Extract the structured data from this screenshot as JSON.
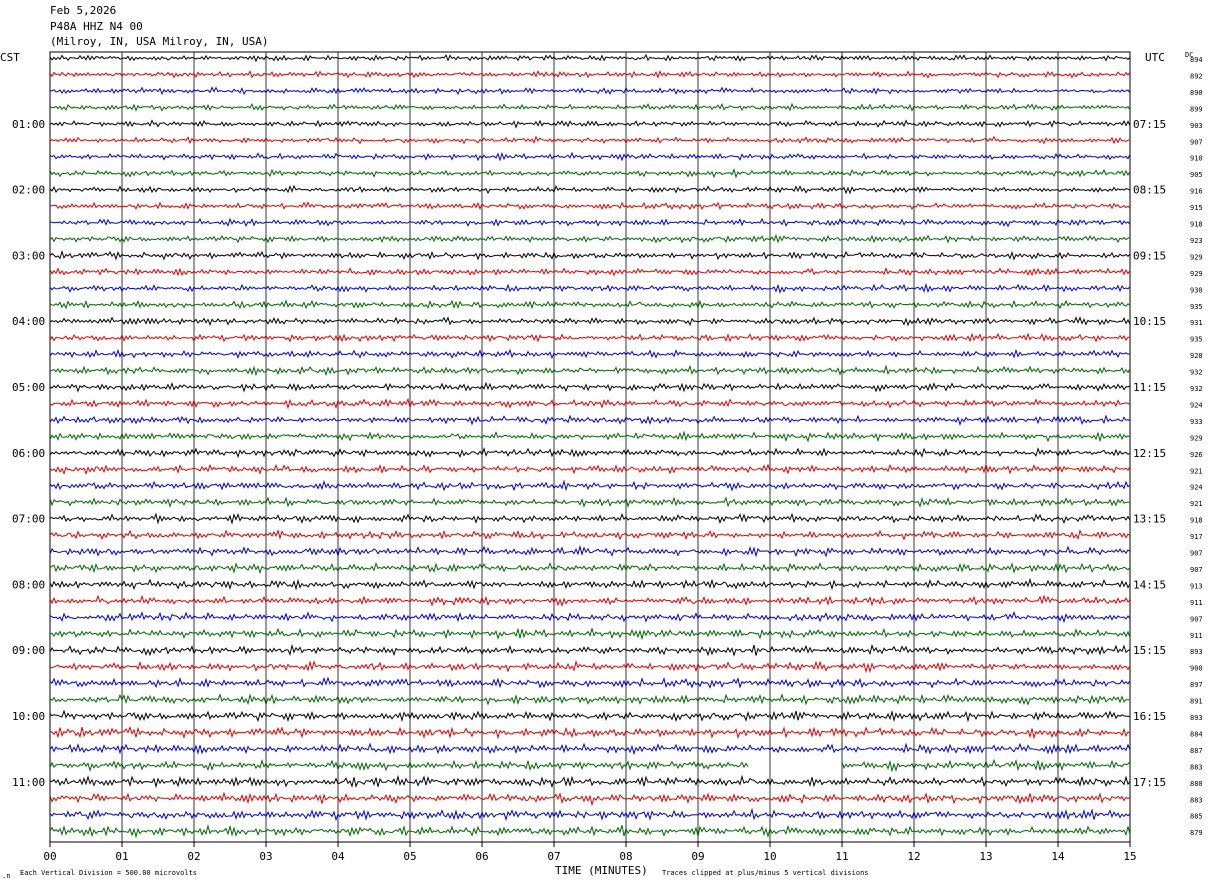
{
  "header": {
    "date": "Feb 5,2026",
    "station": "P48A HHZ N4 00",
    "location": "(Milroy, IN, USA Milroy, IN, USA)"
  },
  "chart_data": {
    "type": "line",
    "title": "P48A HHZ N4 00",
    "left_timezone": "CST",
    "right_timezone": "UTC",
    "dc_label": "DC",
    "xlabel": "TIME (MINUTES)",
    "xlim": [
      0,
      15
    ],
    "x_ticks": [
      "00",
      "01",
      "02",
      "03",
      "04",
      "05",
      "06",
      "07",
      "08",
      "09",
      "10",
      "11",
      "12",
      "13",
      "14",
      "15"
    ],
    "left_hour_labels": [
      "01:00",
      "02:00",
      "03:00",
      "04:00",
      "05:00",
      "06:00",
      "07:00",
      "08:00",
      "09:00",
      "10:00",
      "11:00"
    ],
    "right_hour_labels": [
      "07:15",
      "08:15",
      "09:15",
      "10:15",
      "11:15",
      "12:15",
      "13:15",
      "14:15",
      "15:15",
      "16:15",
      "17:15"
    ],
    "dc_offsets": [
      "894",
      "892",
      "890",
      "899",
      "903",
      "907",
      "910",
      "905",
      "916",
      "915",
      "918",
      "923",
      "929",
      "929",
      "930",
      "935",
      "931",
      "935",
      "928",
      "932",
      "932",
      "924",
      "933",
      "929",
      "926",
      "921",
      "924",
      "921",
      "918",
      "917",
      "907",
      "907",
      "913",
      "911",
      "907",
      "911",
      "893",
      "900",
      "897",
      "891",
      "893",
      "884",
      "887",
      "883",
      "880",
      "883",
      "885",
      "879"
    ],
    "trace_colors": [
      "#000000",
      "#dd0000",
      "#0000cc",
      "#006600"
    ],
    "traces_per_hour": 4,
    "gap": {
      "trace_index": 43,
      "from_minute": 9.7,
      "to_minute": 11.0
    },
    "event": {
      "trace_index": 45,
      "at_minute": 7.55
    },
    "footer_scale": "Each Vertical Division =  500.00 microvolts",
    "footer_clip": "Traces clipped at plus/minus 5 vertical divisions"
  }
}
